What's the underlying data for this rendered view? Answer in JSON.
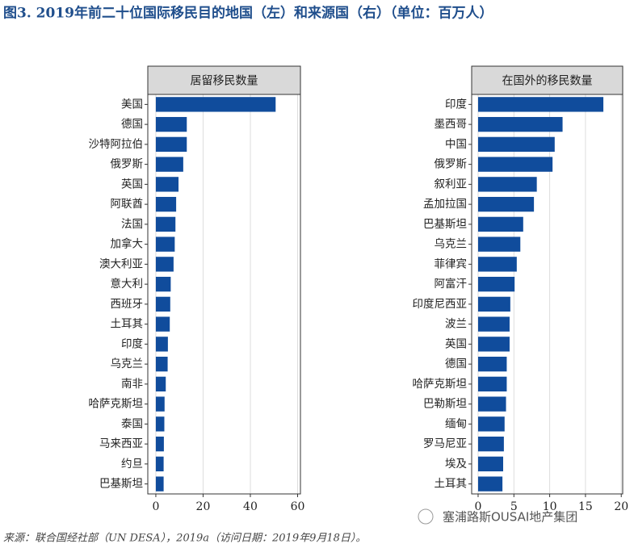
{
  "title": "图3. 2019年前二十位国际移民目的地国（左）和来源国（右）（单位：百万人）",
  "source": "来源：联合国经社部（UN DESA），2019a（访问日期：2019年9月18日）。",
  "watermark": "塞浦路斯OUSAI地产集团",
  "chart_data": [
    {
      "type": "bar",
      "orientation": "horizontal",
      "panel_title": "居留移民数量",
      "color": "#104c9c",
      "grid": true,
      "categories": [
        "美国",
        "德国",
        "沙特阿拉伯",
        "俄罗斯",
        "英国",
        "阿联酋",
        "法国",
        "加拿大",
        "澳大利亚",
        "意大利",
        "西班牙",
        "土耳其",
        "印度",
        "乌克兰",
        "南非",
        "哈萨克斯坦",
        "泰国",
        "马来西亚",
        "约旦",
        "巴基斯坦"
      ],
      "values": [
        50.7,
        13.1,
        13.1,
        11.6,
        9.6,
        8.6,
        8.3,
        8.0,
        7.5,
        6.3,
        6.1,
        5.9,
        5.1,
        5.0,
        4.2,
        3.7,
        3.6,
        3.4,
        3.3,
        3.3
      ],
      "xlim": [
        -3.4,
        61.2
      ],
      "xticks": [
        0,
        20,
        40,
        60
      ]
    },
    {
      "type": "bar",
      "orientation": "horizontal",
      "panel_title": "在国外的移民数量",
      "color": "#104c9c",
      "grid": true,
      "categories": [
        "印度",
        "墨西哥",
        "中国",
        "俄罗斯",
        "叙利亚",
        "孟加拉国",
        "巴基斯坦",
        "乌克兰",
        "菲律宾",
        "阿富汗",
        "印度尼西亚",
        "波兰",
        "英国",
        "德国",
        "哈萨克斯坦",
        "巴勒斯坦",
        "缅甸",
        "罗马尼亚",
        "埃及",
        "土耳其"
      ],
      "values": [
        17.5,
        11.8,
        10.7,
        10.4,
        8.2,
        7.8,
        6.3,
        5.9,
        5.4,
        5.1,
        4.5,
        4.4,
        4.4,
        4.0,
        4.0,
        3.9,
        3.7,
        3.6,
        3.5,
        3.4
      ],
      "xlim": [
        -0.9,
        20.2
      ],
      "xticks": [
        0,
        5,
        10,
        15,
        20
      ]
    }
  ]
}
